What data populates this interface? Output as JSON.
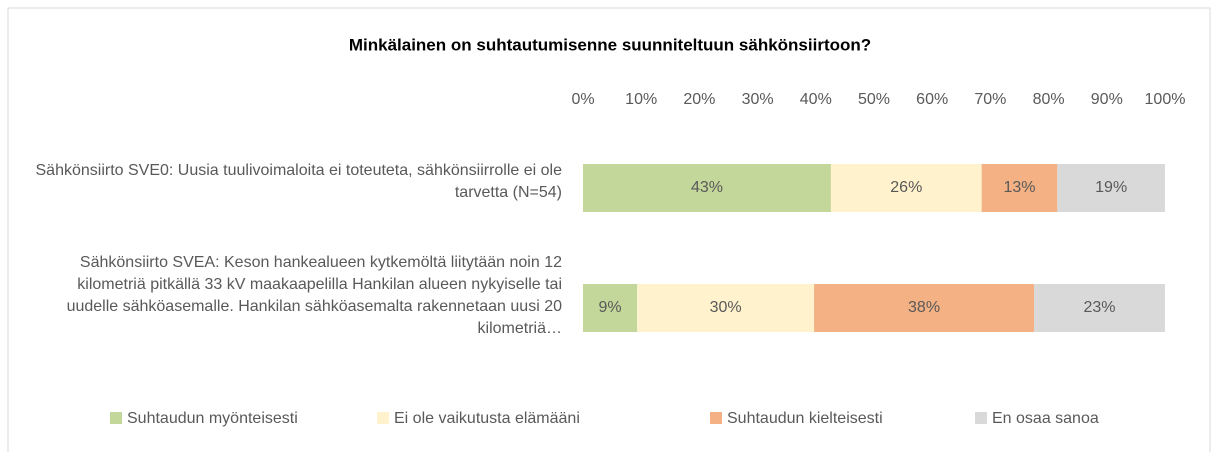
{
  "chart_data": {
    "type": "stacked-bar-horizontal",
    "title": "Minkälainen on suhtautumisenne suunniteltuun sähkönsiirtoon?",
    "categories": [
      "Sähkönsiirto SVE0: Uusia tuulivoimaloita ei toteuteta, sähkönsiirrolle ei ole tarvetta (N=54)",
      "Sähkönsiirto SVEA: Keson hankealueen kytkemöltä liitytään noin 12 kilometriä pitkällä 33 kV maakaapelilla Hankilan alueen nykyiselle tai uudelle sähköasemalle. Hankilan sähköasemalta rakennetaan uusi 20 kilometriä…"
    ],
    "series": [
      {
        "name": "Suhtaudun myönteisesti",
        "color": "#c4d79b",
        "values": [
          42.6,
          9.3
        ],
        "value_labels": [
          "43%",
          "9%"
        ]
      },
      {
        "name": "Ei ole vaikutusta elämääni",
        "color": "#fff2cc",
        "values": [
          25.9,
          30.4
        ],
        "value_labels": [
          "26%",
          "30%"
        ]
      },
      {
        "name": "Suhtaudun kielteisesti",
        "color": "#f4b183",
        "values": [
          13.0,
          37.8
        ],
        "value_labels": [
          "13%",
          "38%"
        ]
      },
      {
        "name": "En osaa sanoa",
        "color": "#d9d9d9",
        "values": [
          18.5,
          22.5
        ],
        "value_labels": [
          "19%",
          "23%"
        ]
      }
    ],
    "xlim": [
      0,
      100
    ],
    "xticks": [
      {
        "value": 0,
        "label": "0%"
      },
      {
        "value": 10,
        "label": "10%"
      },
      {
        "value": 20,
        "label": "20%"
      },
      {
        "value": 30,
        "label": "30%"
      },
      {
        "value": 40,
        "label": "40%"
      },
      {
        "value": 50,
        "label": "50%"
      },
      {
        "value": 60,
        "label": "60%"
      },
      {
        "value": 70,
        "label": "70%"
      },
      {
        "value": 80,
        "label": "80%"
      },
      {
        "value": 90,
        "label": "90%"
      },
      {
        "value": 100,
        "label": "100%"
      }
    ],
    "legend": "bottom"
  }
}
